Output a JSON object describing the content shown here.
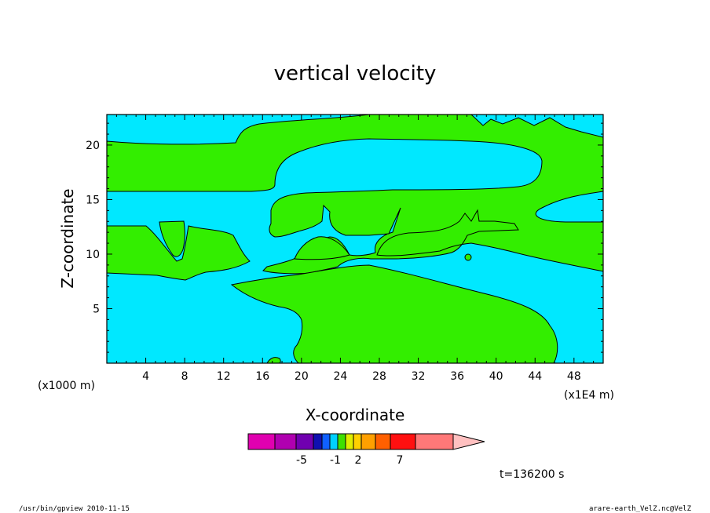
{
  "chart_data": {
    "type": "heatmap",
    "title": "vertical velocity",
    "xlabel": "X-coordinate",
    "ylabel": "Z-coordinate",
    "x_unit_left": "(x1000 m)",
    "x_unit_right": "(x1E4 m)",
    "xlim": [
      0,
      51
    ],
    "ylim": [
      0,
      22.8
    ],
    "x_ticks": [
      4,
      8,
      12,
      16,
      20,
      24,
      28,
      32,
      36,
      40,
      44,
      48
    ],
    "y_ticks": [
      5,
      10,
      15,
      20
    ],
    "colors": {
      "background_cyan": "#00e8ff",
      "positive_green": "#33ee00",
      "contour_line": "#000000"
    },
    "colorbar": {
      "colors": [
        "#e000b0",
        "#b000b0",
        "#7000b0",
        "#1010b0",
        "#1060ff",
        "#00d0ff",
        "#40e000",
        "#e0ee00",
        "#ffd000",
        "#ffa000",
        "#ff6000",
        "#ff1010",
        "#ff7878",
        "#ffc0c0"
      ],
      "labels": [
        "-5",
        "-1",
        "2",
        "7"
      ]
    },
    "time_label": "t=136200 s"
  },
  "footer": {
    "left": "/usr/bin/gpview   2010-11-15",
    "right": "arare-earth_VelZ.nc@VelZ"
  }
}
